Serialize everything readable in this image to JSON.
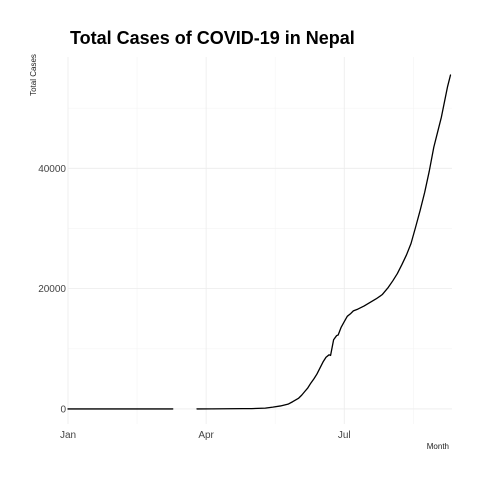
{
  "chart_data": {
    "type": "line",
    "title": "Total Cases of COVID-19 in Nepal",
    "xlabel": "Month",
    "ylabel": "Total Cases",
    "x_axis_type": "date",
    "xlim": [
      "2020-01-01",
      "2020-09-10"
    ],
    "ylim": [
      -2500,
      58500
    ],
    "x_ticks": [
      {
        "date": "2020-01-01",
        "label": "Jan"
      },
      {
        "date": "2020-04-01",
        "label": "Apr"
      },
      {
        "date": "2020-07-01",
        "label": "Jul"
      }
    ],
    "y_ticks": [
      {
        "value": 0,
        "label": "0"
      },
      {
        "value": 20000,
        "label": "20000"
      },
      {
        "value": 40000,
        "label": "40000"
      }
    ],
    "grid": true,
    "legend": "none",
    "line_color": "#000000",
    "segments": [
      {
        "x": [
          "2020-01-01",
          "2020-01-20",
          "2020-02-10",
          "2020-03-01",
          "2020-03-10"
        ],
        "y": [
          0,
          0,
          1,
          1,
          1
        ]
      },
      {
        "x": [
          "2020-03-26",
          "2020-04-05",
          "2020-04-15",
          "2020-04-25",
          "2020-05-01",
          "2020-05-10",
          "2020-05-15",
          "2020-05-20",
          "2020-05-25",
          "2020-05-28",
          "2020-06-01",
          "2020-06-03",
          "2020-06-05",
          "2020-06-07",
          "2020-06-09",
          "2020-06-11",
          "2020-06-13",
          "2020-06-15",
          "2020-06-17",
          "2020-06-19",
          "2020-06-21",
          "2020-06-22",
          "2020-06-24",
          "2020-06-26",
          "2020-06-27",
          "2020-06-29",
          "2020-07-01",
          "2020-07-03",
          "2020-07-05",
          "2020-07-07",
          "2020-07-10",
          "2020-07-14",
          "2020-07-18",
          "2020-07-22",
          "2020-07-26",
          "2020-07-30",
          "2020-08-02",
          "2020-08-05",
          "2020-08-08",
          "2020-08-11",
          "2020-08-14",
          "2020-08-17",
          "2020-08-20",
          "2020-08-23",
          "2020-08-26",
          "2020-08-29",
          "2020-09-01",
          "2020-09-03",
          "2020-09-05",
          "2020-09-07",
          "2020-09-09"
        ],
        "y": [
          5,
          16,
          31,
          52,
          59,
          134,
          300,
          500,
          800,
          1200,
          1800,
          2300,
          2900,
          3500,
          4300,
          5000,
          5800,
          6800,
          7800,
          8600,
          9000,
          8900,
          11500,
          12200,
          12300,
          13600,
          14500,
          15400,
          15800,
          16300,
          16600,
          17100,
          17700,
          18300,
          19000,
          20200,
          21300,
          22500,
          24000,
          25600,
          27500,
          30200,
          33000,
          36000,
          39500,
          43500,
          46500,
          48500,
          51000,
          53500,
          55500
        ]
      }
    ]
  }
}
